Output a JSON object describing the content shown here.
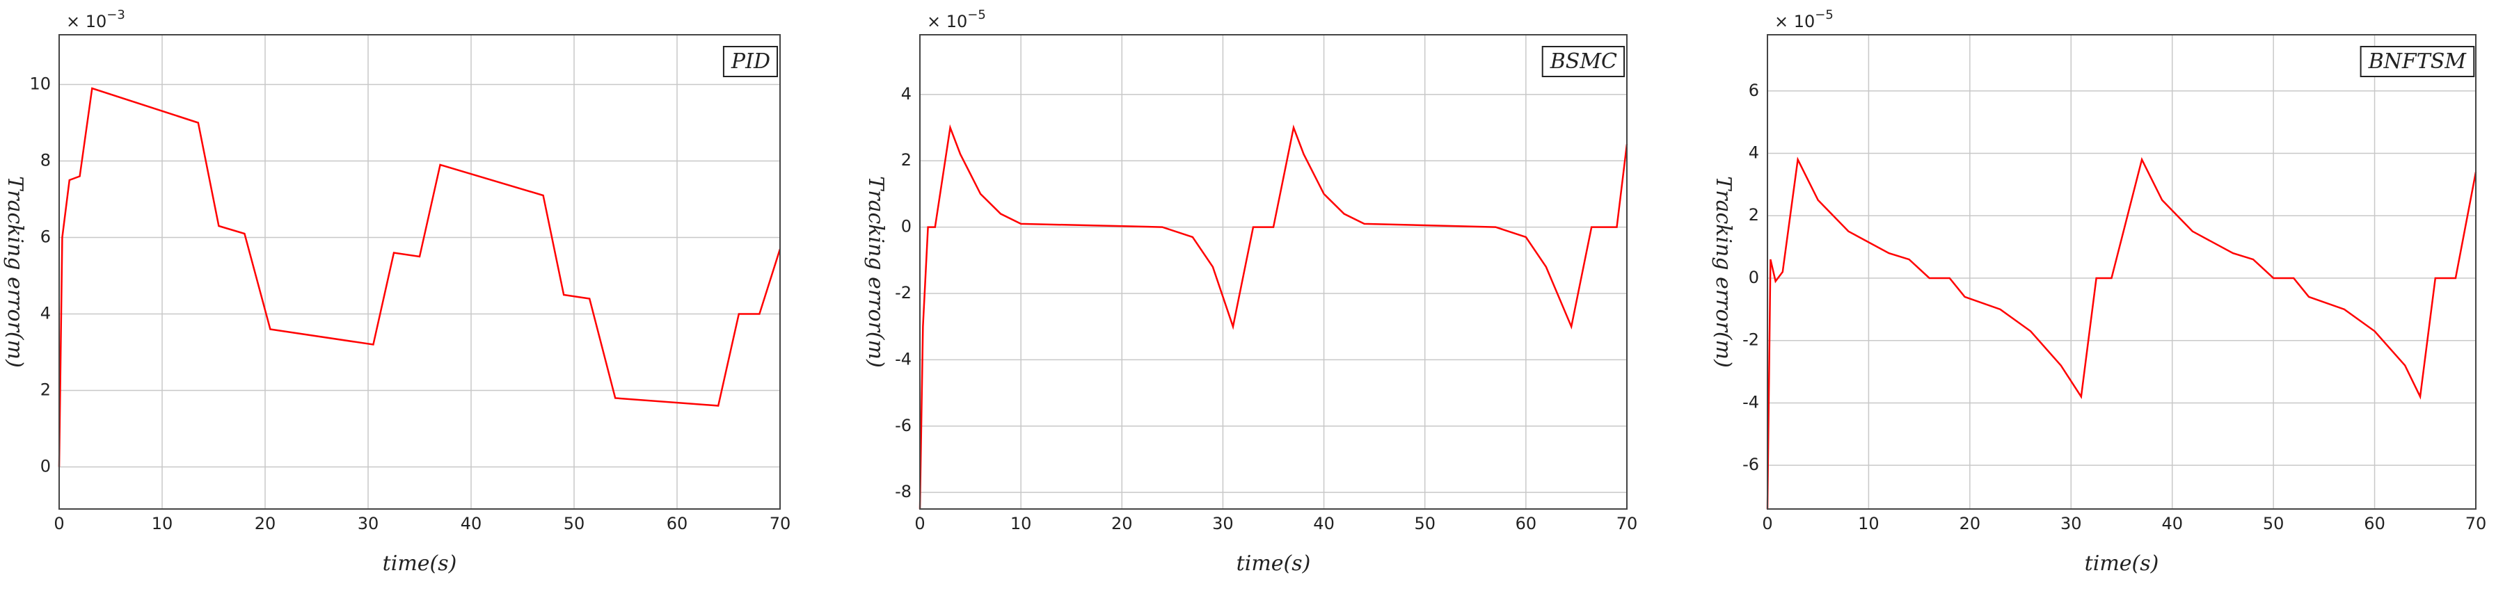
{
  "chart_data": [
    {
      "type": "line",
      "title": "PID",
      "xlabel": "time(s)",
      "ylabel": "Tracking error(m)",
      "scale_base": "× 10",
      "scale_exp": "−3",
      "x": [
        0,
        0.3,
        1,
        2,
        3.2,
        13.5,
        15.5,
        18,
        20.5,
        30.5,
        32.5,
        35,
        37,
        47,
        49,
        51.5,
        54,
        64,
        66,
        68,
        70
      ],
      "values": [
        0,
        6,
        7.5,
        7.6,
        9.9,
        9,
        6.3,
        6.1,
        3.6,
        3.2,
        5.6,
        5.5,
        7.9,
        7.1,
        4.5,
        4.4,
        1.8,
        1.6,
        4.0,
        4.0,
        5.7
      ],
      "color": "#ff0000",
      "xlim": [
        0,
        70
      ],
      "xticks": [
        0,
        10,
        20,
        30,
        40,
        50,
        60,
        70
      ],
      "ylim": [
        -1.1,
        11.3
      ],
      "yticks": [
        0,
        2,
        4,
        6,
        8,
        10
      ],
      "grid": true
    },
    {
      "type": "line",
      "title": "BSMC",
      "xlabel": "time(s)",
      "ylabel": "Tracking error(m)",
      "scale_base": "× 10",
      "scale_exp": "−5",
      "x": [
        0,
        0.3,
        0.8,
        1.5,
        3,
        4,
        6,
        8,
        10,
        24,
        27,
        29,
        31,
        32,
        33,
        35,
        37,
        38,
        40,
        42,
        44,
        57,
        60,
        62,
        64.5,
        65.5,
        66.5,
        69,
        70
      ],
      "values": [
        -8.5,
        -3,
        0,
        0,
        3,
        2.2,
        1,
        0.4,
        0.1,
        0,
        -0.3,
        -1.2,
        -3,
        -1.5,
        0,
        0,
        3,
        2.2,
        1,
        0.4,
        0.1,
        0,
        -0.3,
        -1.2,
        -3,
        -1.5,
        0,
        0,
        2.5
      ],
      "color": "#ff0000",
      "xlim": [
        0,
        70
      ],
      "xticks": [
        0,
        10,
        20,
        30,
        40,
        50,
        60,
        70
      ],
      "ylim": [
        -8.5,
        5.8
      ],
      "yticks": [
        -8,
        -6,
        -4,
        -2,
        0,
        2,
        4
      ],
      "grid": true
    },
    {
      "type": "line",
      "title": "BNFTSM",
      "xlabel": "time(s)",
      "ylabel": "Tracking error(m)",
      "scale_base": "× 10",
      "scale_exp": "−5",
      "x": [
        0,
        0.3,
        0.8,
        1.5,
        3,
        5,
        8,
        12,
        14,
        16,
        18,
        19.5,
        23,
        26,
        29,
        31,
        32.5,
        34,
        37,
        39,
        42,
        46,
        48,
        50,
        52,
        53.5,
        57,
        60,
        63,
        64.5,
        66,
        68,
        70
      ],
      "values": [
        -7.4,
        0.6,
        -0.1,
        0.2,
        3.8,
        2.5,
        1.5,
        0.8,
        0.6,
        0,
        0,
        -0.6,
        -1,
        -1.7,
        -2.8,
        -3.8,
        0,
        0,
        3.8,
        2.5,
        1.5,
        0.8,
        0.6,
        0,
        0,
        -0.6,
        -1,
        -1.7,
        -2.8,
        -3.8,
        0,
        0,
        3.4
      ],
      "color": "#ff0000",
      "xlim": [
        0,
        70
      ],
      "xticks": [
        0,
        10,
        20,
        30,
        40,
        50,
        60,
        70
      ],
      "ylim": [
        -7.4,
        7.8
      ],
      "yticks": [
        -6,
        -4,
        -2,
        0,
        2,
        4,
        6
      ],
      "grid": true
    }
  ]
}
